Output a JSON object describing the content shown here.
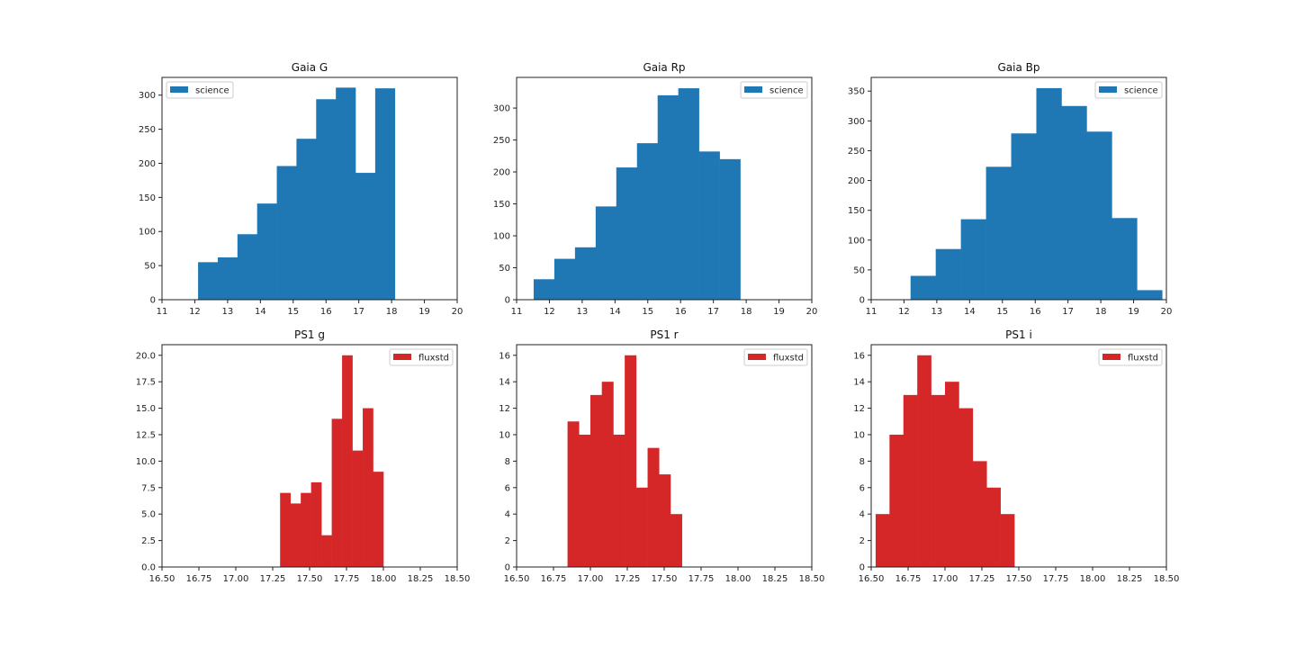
{
  "chart_data": [
    {
      "type": "bar",
      "subtype": "histogram",
      "title": "Gaia G",
      "xlabel": "",
      "ylabel": "",
      "xlim": [
        11,
        20
      ],
      "ylim": [
        0,
        326
      ],
      "xticks": [
        "11",
        "12",
        "13",
        "14",
        "15",
        "16",
        "17",
        "18",
        "19",
        "20"
      ],
      "xtick_values": [
        11,
        12,
        13,
        14,
        15,
        16,
        17,
        18,
        19,
        20
      ],
      "yticks": [
        "0",
        "50",
        "100",
        "150",
        "200",
        "250",
        "300"
      ],
      "ytick_values": [
        0,
        50,
        100,
        150,
        200,
        250,
        300
      ],
      "bin_edges": [
        12.1,
        12.7,
        13.3,
        13.9,
        14.5,
        15.1,
        15.7,
        16.3,
        16.9,
        17.5,
        18.1
      ],
      "series": [
        {
          "name": "science",
          "color": "#1f77b4",
          "values": [
            55,
            62,
            96,
            141,
            196,
            236,
            294,
            311,
            186,
            310
          ]
        }
      ],
      "legend": {
        "position": "upper-left",
        "entries": [
          "science"
        ]
      },
      "grid": false
    },
    {
      "type": "bar",
      "subtype": "histogram",
      "title": "Gaia Rp",
      "xlabel": "",
      "ylabel": "",
      "xlim": [
        11,
        20
      ],
      "ylim": [
        0,
        348
      ],
      "xticks": [
        "11",
        "12",
        "13",
        "14",
        "15",
        "16",
        "17",
        "18",
        "19",
        "20"
      ],
      "xtick_values": [
        11,
        12,
        13,
        14,
        15,
        16,
        17,
        18,
        19,
        20
      ],
      "yticks": [
        "0",
        "50",
        "100",
        "150",
        "200",
        "250",
        "300"
      ],
      "ytick_values": [
        0,
        50,
        100,
        150,
        200,
        250,
        300
      ],
      "bin_edges": [
        11.52,
        12.15,
        12.78,
        13.41,
        14.04,
        14.67,
        15.3,
        15.93,
        16.56,
        17.19,
        17.82
      ],
      "series": [
        {
          "name": "science",
          "color": "#1f77b4",
          "values": [
            32,
            64,
            82,
            146,
            207,
            245,
            320,
            331,
            232,
            220
          ]
        }
      ],
      "legend": {
        "position": "upper-right",
        "entries": [
          "science"
        ]
      },
      "grid": false
    },
    {
      "type": "bar",
      "subtype": "histogram",
      "title": "Gaia Bp",
      "xlabel": "",
      "ylabel": "",
      "xlim": [
        11,
        20
      ],
      "ylim": [
        0,
        373
      ],
      "xticks": [
        "11",
        "12",
        "13",
        "14",
        "15",
        "16",
        "17",
        "18",
        "19",
        "20"
      ],
      "xtick_values": [
        11,
        12,
        13,
        14,
        15,
        16,
        17,
        18,
        19,
        20
      ],
      "yticks": [
        "0",
        "50",
        "100",
        "150",
        "200",
        "250",
        "300",
        "350"
      ],
      "ytick_values": [
        0,
        50,
        100,
        150,
        200,
        250,
        300,
        350
      ],
      "bin_edges": [
        12.2,
        12.967,
        13.734,
        14.501,
        15.268,
        16.035,
        16.802,
        17.569,
        18.336,
        19.103,
        19.87
      ],
      "series": [
        {
          "name": "science",
          "color": "#1f77b4",
          "values": [
            40,
            85,
            135,
            223,
            279,
            355,
            325,
            282,
            137,
            16
          ]
        }
      ],
      "legend": {
        "position": "upper-right",
        "entries": [
          "science"
        ]
      },
      "grid": false
    },
    {
      "type": "bar",
      "subtype": "histogram",
      "title": "PS1 g",
      "xlabel": "",
      "ylabel": "",
      "xlim": [
        16.5,
        18.5
      ],
      "ylim": [
        0,
        21
      ],
      "xticks": [
        "16.50",
        "16.75",
        "17.00",
        "17.25",
        "17.50",
        "17.75",
        "18.00",
        "18.25",
        "18.50"
      ],
      "xtick_values": [
        16.5,
        16.75,
        17.0,
        17.25,
        17.5,
        17.75,
        18.0,
        18.25,
        18.5
      ],
      "yticks": [
        "0.0",
        "2.5",
        "5.0",
        "7.5",
        "10.0",
        "12.5",
        "15.0",
        "17.5",
        "20.0"
      ],
      "ytick_values": [
        0,
        2.5,
        5,
        7.5,
        10,
        12.5,
        15,
        17.5,
        20
      ],
      "bin_edges": [
        17.3,
        17.37,
        17.44,
        17.51,
        17.58,
        17.65,
        17.72,
        17.79,
        17.86,
        17.93,
        18.0
      ],
      "series": [
        {
          "name": "fluxstd",
          "color": "#d62728",
          "values": [
            7,
            6,
            7,
            8,
            3,
            14,
            20,
            11,
            15,
            9
          ]
        }
      ],
      "legend": {
        "position": "upper-right",
        "entries": [
          "fluxstd"
        ]
      },
      "grid": false
    },
    {
      "type": "bar",
      "subtype": "histogram",
      "title": "PS1 r",
      "xlabel": "",
      "ylabel": "",
      "xlim": [
        16.5,
        18.5
      ],
      "ylim": [
        0,
        16.8
      ],
      "xticks": [
        "16.50",
        "16.75",
        "17.00",
        "17.25",
        "17.50",
        "17.75",
        "18.00",
        "18.25",
        "18.50"
      ],
      "xtick_values": [
        16.5,
        16.75,
        17.0,
        17.25,
        17.5,
        17.75,
        18.0,
        18.25,
        18.5
      ],
      "yticks": [
        "0",
        "2",
        "4",
        "6",
        "8",
        "10",
        "12",
        "14",
        "16"
      ],
      "ytick_values": [
        0,
        2,
        4,
        6,
        8,
        10,
        12,
        14,
        16
      ],
      "bin_edges": [
        16.845,
        16.9225,
        17.0,
        17.0775,
        17.155,
        17.2325,
        17.31,
        17.3875,
        17.465,
        17.5425,
        17.62
      ],
      "series": [
        {
          "name": "fluxstd",
          "color": "#d62728",
          "values": [
            11,
            10,
            13,
            14,
            10,
            16,
            6,
            9,
            7,
            4
          ]
        }
      ],
      "legend": {
        "position": "upper-right",
        "entries": [
          "fluxstd"
        ]
      },
      "grid": false
    },
    {
      "type": "bar",
      "subtype": "histogram",
      "title": "PS1 i",
      "xlabel": "",
      "ylabel": "",
      "xlim": [
        16.5,
        18.5
      ],
      "ylim": [
        0,
        16.8
      ],
      "xticks": [
        "16.50",
        "16.75",
        "17.00",
        "17.25",
        "17.50",
        "17.75",
        "18.00",
        "18.25",
        "18.50"
      ],
      "xtick_values": [
        16.5,
        16.75,
        17.0,
        17.25,
        17.5,
        17.75,
        18.0,
        18.25,
        18.5
      ],
      "yticks": [
        "0",
        "2",
        "4",
        "6",
        "8",
        "10",
        "12",
        "14",
        "16"
      ],
      "ytick_values": [
        0,
        2,
        4,
        6,
        8,
        10,
        12,
        14,
        16
      ],
      "bin_edges": [
        16.53,
        16.624,
        16.718,
        16.812,
        16.906,
        17.0,
        17.094,
        17.188,
        17.282,
        17.376,
        17.47
      ],
      "series": [
        {
          "name": "fluxstd",
          "color": "#d62728",
          "values": [
            4,
            10,
            13,
            16,
            13,
            14,
            12,
            8,
            6,
            4
          ]
        }
      ],
      "legend": {
        "position": "upper-right",
        "entries": [
          "fluxstd"
        ]
      },
      "grid": false
    }
  ]
}
